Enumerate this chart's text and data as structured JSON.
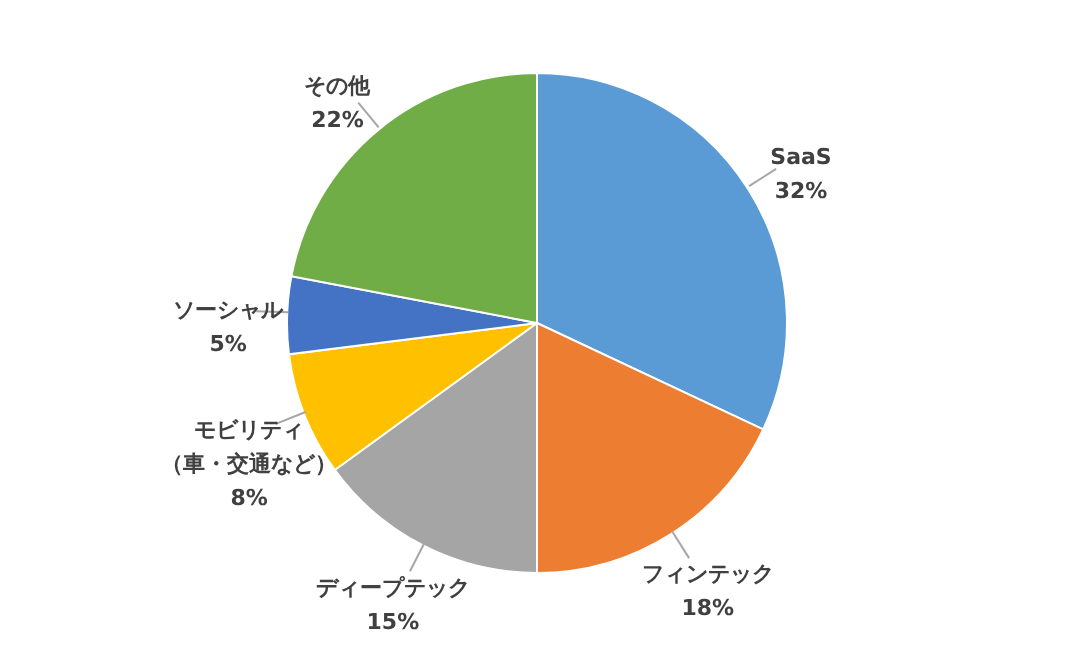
{
  "chart_data": {
    "type": "pie",
    "categories": [
      "SaaS",
      "フィンテック",
      "ディープテック",
      "モビリティ（車・交通など）",
      "ソーシャル",
      "その他"
    ],
    "values": [
      32,
      18,
      15,
      8,
      5,
      22
    ],
    "value_labels": [
      "32%",
      "18%",
      "15%",
      "8%",
      "5%",
      "22%"
    ],
    "colors": [
      "#5b9bd5",
      "#ed7d31",
      "#a5a5a5",
      "#ffc000",
      "#4472c4",
      "#70ad47"
    ]
  }
}
